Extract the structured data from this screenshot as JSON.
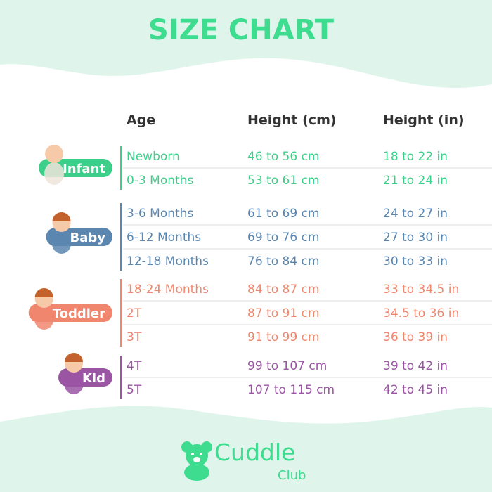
{
  "title": "SIZE CHART",
  "columns": [
    "Age",
    "Height (cm)",
    "Height (in)"
  ],
  "groups": [
    {
      "label": "Infant",
      "color": "#3ccf8a",
      "rows": [
        [
          "Newborn",
          "46 to 56 cm",
          "18 to 22 in"
        ],
        [
          "0-3 Months",
          "53 to 61 cm",
          "21 to 24 in"
        ]
      ]
    },
    {
      "label": "Baby",
      "color": "#5a86b0",
      "rows": [
        [
          "3-6 Months",
          "61 to 69 cm",
          "24 to 27 in"
        ],
        [
          "6-12 Months",
          "69 to 76 cm",
          "27 to 30 in"
        ],
        [
          "12-18 Months",
          "76 to 84 cm",
          "30 to 33 in"
        ]
      ]
    },
    {
      "label": "Toddler",
      "color": "#f0866e",
      "rows": [
        [
          "18-24 Months",
          "84 to 87 cm",
          "33 to 34.5 in"
        ],
        [
          "2T",
          "87 to 91 cm",
          "34.5 to 36 in"
        ],
        [
          "3T",
          "91 to 99 cm",
          "36 to 39 in"
        ]
      ]
    },
    {
      "label": "Kid",
      "color": "#9a55a3",
      "rows": [
        [
          "4T",
          "99 to 107 cm",
          "39 to 42 in"
        ],
        [
          "5T",
          "107 to 115 cm",
          "42 to 45 in"
        ]
      ]
    }
  ],
  "brand": {
    "name": "Cuddle",
    "sub": "Club"
  }
}
